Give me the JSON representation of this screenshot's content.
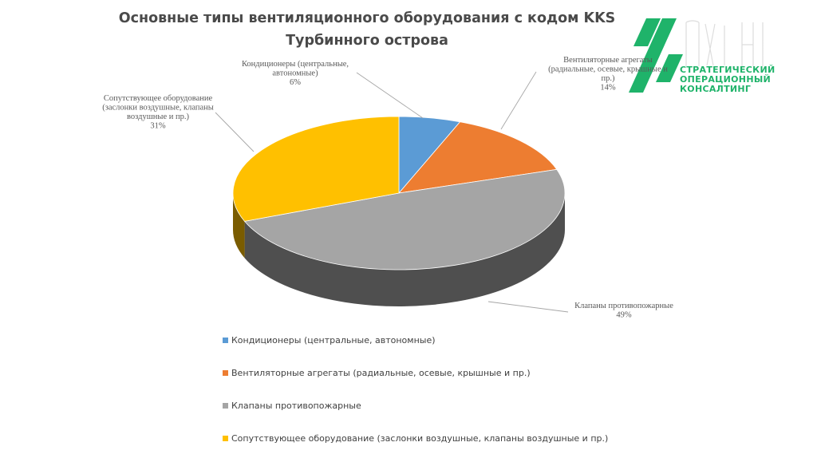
{
  "slide": {
    "title_line1": "Основные типы вентиляционного оборудования с кодом KKS",
    "title_line2": "Турбинного острова"
  },
  "logo": {
    "line1": "СТРАТЕГИЧЕСКИЙ",
    "line2": "ОПЕРАЦИОННЫЙ",
    "line3": "КОНСАЛТИНГ",
    "brand_color": "#1fb36a"
  },
  "chart_data": {
    "type": "pie",
    "style": "3d",
    "title": "Основные типы вентиляционного оборудования с кодом KKS Турбинного острова",
    "legend_position": "bottom",
    "slices": [
      {
        "name": "Кондиционеры (центральные, автономные)",
        "value": 6,
        "percent_label": "6%",
        "color": "#5b9bd5",
        "label_lines": [
          "Кондиционеры (центральные,",
          "автономные)"
        ]
      },
      {
        "name": "Вентиляторные агрегаты (радиальные, осевые, крышные и пр.)",
        "value": 14,
        "percent_label": "14%",
        "color": "#ed7d31",
        "label_lines": [
          "Вентиляторные агрегаты",
          "(радиальные, осевые, крышные и",
          "пр.)"
        ]
      },
      {
        "name": "Клапаны противопожарные",
        "value": 49,
        "percent_label": "49%",
        "color": "#a5a5a5",
        "label_lines": [
          "Клапаны противопожарные"
        ]
      },
      {
        "name": "Сопутствующее оборудование (заслонки воздушные, клапаны воздушные и пр.)",
        "value": 31,
        "percent_label": "31%",
        "color": "#ffc000",
        "label_lines": [
          "Сопутствующее оборудование",
          "(заслонки воздушные, клапаны",
          "воздушные и пр.)"
        ]
      }
    ]
  }
}
